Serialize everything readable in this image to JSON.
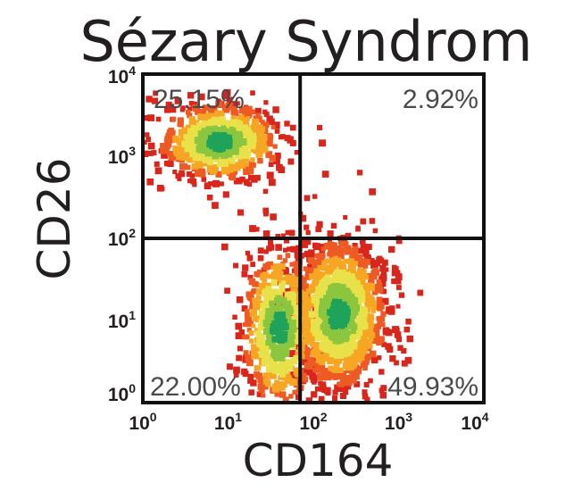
{
  "chart_data": {
    "type": "scatter",
    "title": "Sézary Syndrom",
    "xlabel": "CD164",
    "ylabel": "CD26",
    "x_scale": "log",
    "y_scale": "log",
    "xlim": [
      1,
      10000
    ],
    "ylim": [
      1,
      10000
    ],
    "x_ticks": [
      {
        "base": "10",
        "exp": "0",
        "value": 1
      },
      {
        "base": "10",
        "exp": "1",
        "value": 10
      },
      {
        "base": "10",
        "exp": "2",
        "value": 100
      },
      {
        "base": "10",
        "exp": "3",
        "value": 1000
      },
      {
        "base": "10",
        "exp": "4",
        "value": 10000
      }
    ],
    "y_ticks": [
      {
        "base": "10",
        "exp": "0",
        "value": 1
      },
      {
        "base": "10",
        "exp": "1",
        "value": 10
      },
      {
        "base": "10",
        "exp": "2",
        "value": 100
      },
      {
        "base": "10",
        "exp": "3",
        "value": 1000
      },
      {
        "base": "10",
        "exp": "4",
        "value": 10000
      }
    ],
    "gates": {
      "x": 70,
      "y": 100
    },
    "quadrants": [
      {
        "position": "top-left",
        "label": "25.15%"
      },
      {
        "position": "top-right",
        "label": "2.92%"
      },
      {
        "position": "bottom-left",
        "label": "22.00%"
      },
      {
        "position": "bottom-right",
        "label": "49.93%"
      }
    ],
    "populations": [
      {
        "center_x": 8,
        "center_y": 1500,
        "spread_x": 0.36,
        "spread_y": 0.24,
        "weight": 0.26
      },
      {
        "center_x": 200,
        "center_y": 12,
        "spread_x": 0.28,
        "spread_y": 0.45,
        "weight": 0.5
      },
      {
        "center_x": 40,
        "center_y": 8,
        "spread_x": 0.22,
        "spread_y": 0.5,
        "weight": 0.24
      }
    ],
    "density_colors": [
      "#d9261c",
      "#ee5a24",
      "#f6a623",
      "#e9e14a",
      "#8cc63f",
      "#1fa35a"
    ],
    "grid": false,
    "legend": "none"
  }
}
